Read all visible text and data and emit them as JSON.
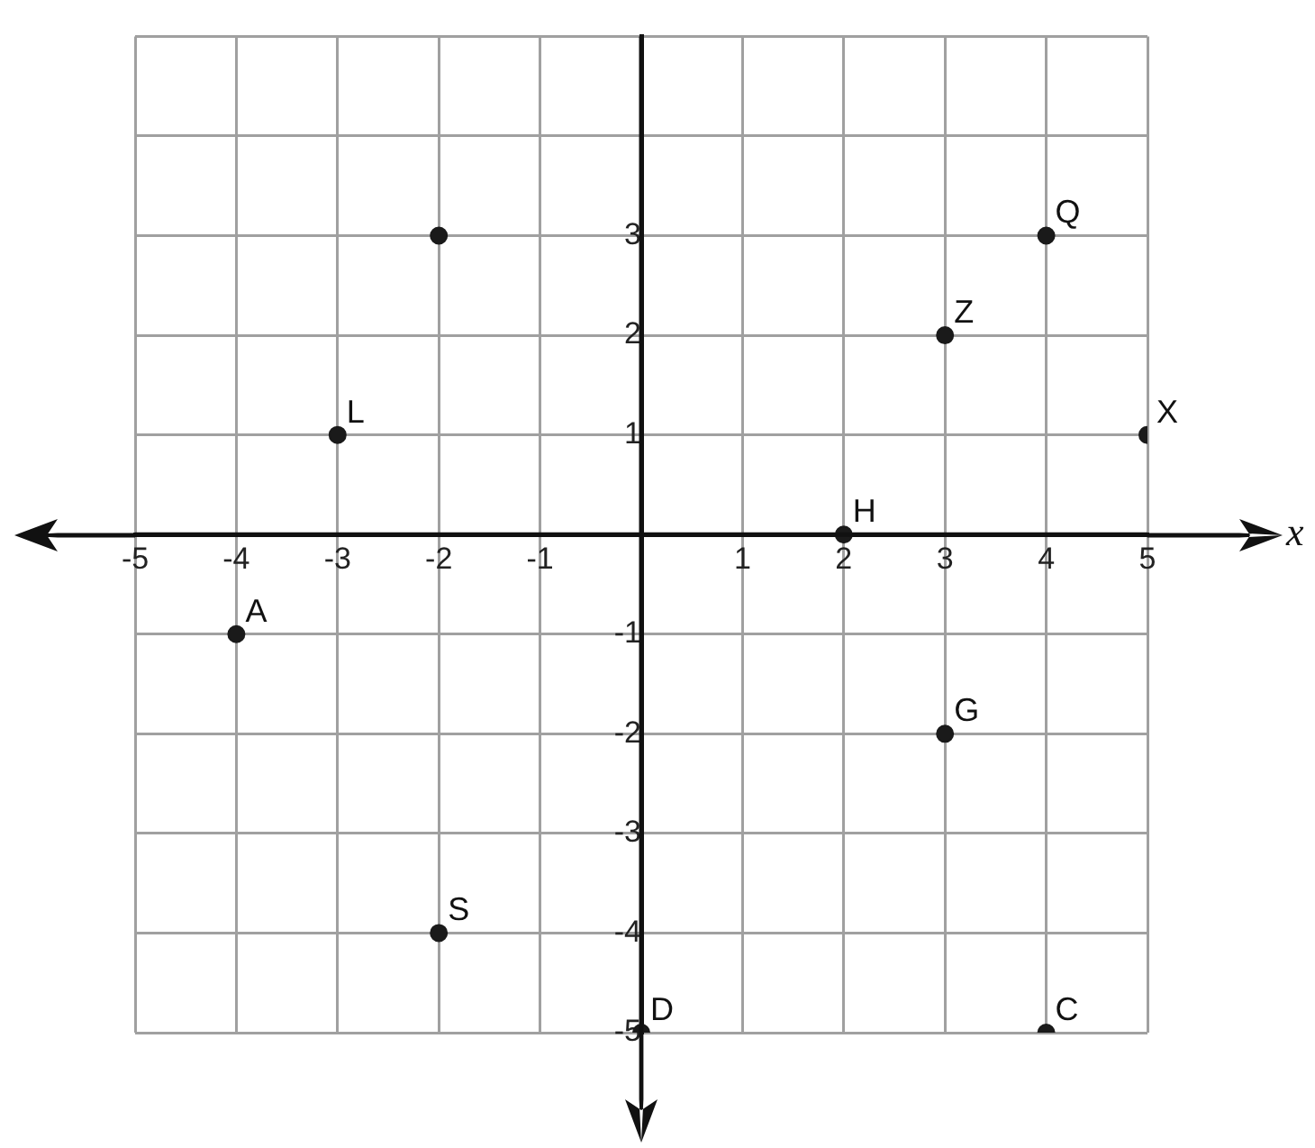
{
  "chart_data": {
    "type": "scatter",
    "xlabel": "x",
    "x": [
      -2,
      4,
      3,
      -3,
      5,
      2,
      -4,
      3,
      -2,
      0,
      4
    ],
    "values": [
      3,
      3,
      2,
      1,
      1,
      0,
      -1,
      -2,
      -4,
      -5,
      -5
    ],
    "color": "#1a1a1a",
    "marker": "circle",
    "grid": true,
    "xlim": [
      -5,
      5
    ],
    "ylim": [
      -5,
      5
    ],
    "xticks": [
      -5,
      -4,
      -3,
      -2,
      -1,
      {
        "value": 0,
        "label": null
      },
      1,
      2,
      3,
      4,
      5
    ],
    "yticks": [
      -5,
      -4,
      -3,
      -2,
      -1,
      {
        "value": 0,
        "label": null
      },
      1,
      2,
      3,
      {
        "value": 4,
        "label": null
      },
      {
        "value": 5,
        "label": null
      }
    ],
    "annotations": [
      {
        "text": "Q",
        "x": 4,
        "y": 3
      },
      {
        "text": "Z",
        "x": 3,
        "y": 2
      },
      {
        "text": "L",
        "x": -3,
        "y": 1
      },
      {
        "text": "X",
        "x": 5,
        "y": 1
      },
      {
        "text": "H",
        "x": 2,
        "y": 0
      },
      {
        "text": "A",
        "x": -4,
        "y": -1
      },
      {
        "text": "G",
        "x": 3,
        "y": -2
      },
      {
        "text": "S",
        "x": -2,
        "y": -4
      },
      {
        "text": "D",
        "x": 0,
        "y": -5
      },
      {
        "text": "C",
        "x": 4,
        "y": -5
      }
    ]
  }
}
